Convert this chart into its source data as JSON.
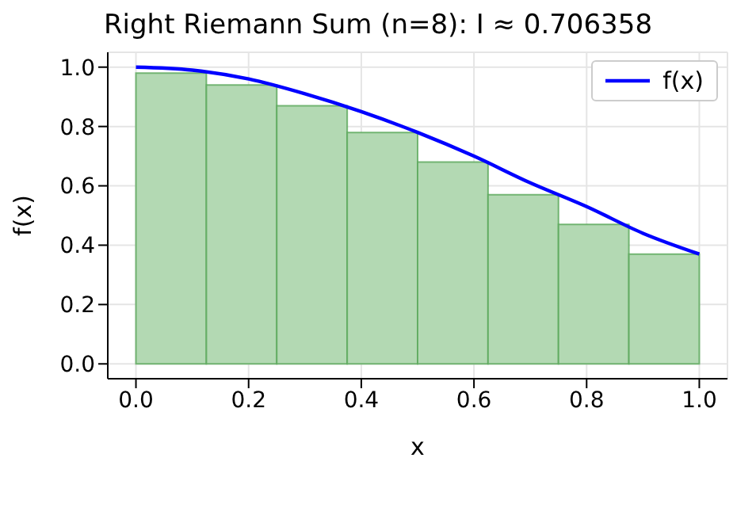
{
  "chart_data": {
    "type": "histogram",
    "title": "Right Riemann Sum (n=8): I ≈ 0.706358",
    "xlabel": "x",
    "ylabel": "f(x)",
    "series": [
      {
        "color": "#b3d9b3",
        "bins": [
          0,
          0.125,
          0.25,
          0.375,
          0.5,
          0.625,
          0.75,
          0.875,
          1
        ],
        "values": [
          0.98,
          0.94,
          0.87,
          0.78,
          0.68,
          0.57,
          0.47,
          0.37
        ]
      },
      {
        "type": "line",
        "name": "f(x)",
        "color": "#0000ff",
        "x": [
          0,
          0.1,
          0.2,
          0.3,
          0.4,
          0.5,
          0.6,
          0.7,
          0.8,
          0.9,
          1
        ],
        "values": [
          1.0,
          0.99,
          0.96,
          0.91,
          0.85,
          0.78,
          0.7,
          0.61,
          0.53,
          0.44,
          0.37
        ]
      }
    ],
    "xlim": [
      -0.05,
      1.05
    ],
    "xticks": [
      {
        "value": 0,
        "label": "0.0"
      },
      {
        "value": 0.2,
        "label": "0.2"
      },
      {
        "value": 0.4,
        "label": "0.4"
      },
      {
        "value": 0.6,
        "label": "0.6"
      },
      {
        "value": 0.8,
        "label": "0.8"
      },
      {
        "value": 1,
        "label": "1.0"
      }
    ],
    "ylim": [
      -0.05,
      1.05
    ],
    "yticks": [
      {
        "value": 0,
        "label": "0.0"
      },
      {
        "value": 0.2,
        "label": "0.2"
      },
      {
        "value": 0.4,
        "label": "0.4"
      },
      {
        "value": 0.6,
        "label": "0.6"
      },
      {
        "value": 0.8,
        "label": "0.8"
      },
      {
        "value": 1,
        "label": "1.0"
      }
    ],
    "grid": true,
    "legend": "top right"
  }
}
